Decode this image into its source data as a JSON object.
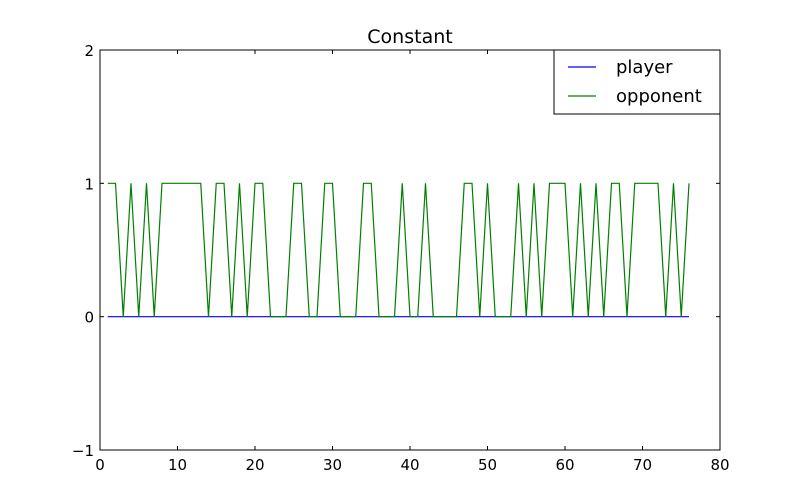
{
  "chart_data": {
    "type": "line",
    "title": "Constant",
    "xlabel": "",
    "ylabel": "",
    "xlim": [
      0,
      80
    ],
    "ylim": [
      -1,
      2
    ],
    "xticks": [
      0,
      10,
      20,
      30,
      40,
      50,
      60,
      70,
      80
    ],
    "yticks": [
      -1,
      0,
      1,
      2
    ],
    "grid": false,
    "legend_position": "top-right",
    "x": [
      1,
      2,
      3,
      4,
      5,
      6,
      7,
      8,
      9,
      10,
      11,
      12,
      13,
      14,
      15,
      16,
      17,
      18,
      19,
      20,
      21,
      22,
      23,
      24,
      25,
      26,
      27,
      28,
      29,
      30,
      31,
      32,
      33,
      34,
      35,
      36,
      37,
      38,
      39,
      40,
      41,
      42,
      43,
      44,
      45,
      46,
      47,
      48,
      49,
      50,
      51,
      52,
      53,
      54,
      55,
      56,
      57,
      58,
      59,
      60,
      61,
      62,
      63,
      64,
      65,
      66,
      67,
      68,
      69,
      70,
      71,
      72,
      73,
      74,
      75,
      76
    ],
    "series": [
      {
        "name": "player",
        "color": "#0000ff",
        "values": [
          0,
          0,
          0,
          0,
          0,
          0,
          0,
          0,
          0,
          0,
          0,
          0,
          0,
          0,
          0,
          0,
          0,
          0,
          0,
          0,
          0,
          0,
          0,
          0,
          0,
          0,
          0,
          0,
          0,
          0,
          0,
          0,
          0,
          0,
          0,
          0,
          0,
          0,
          0,
          0,
          0,
          0,
          0,
          0,
          0,
          0,
          0,
          0,
          0,
          0,
          0,
          0,
          0,
          0,
          0,
          0,
          0,
          0,
          0,
          0,
          0,
          0,
          0,
          0,
          0,
          0,
          0,
          0,
          0,
          0,
          0,
          0,
          0,
          0,
          0,
          0
        ]
      },
      {
        "name": "opponent",
        "color": "#008000",
        "values": [
          1,
          1,
          0,
          1,
          0,
          1,
          0,
          1,
          1,
          1,
          1,
          1,
          1,
          0,
          1,
          1,
          0,
          1,
          0,
          1,
          1,
          0,
          0,
          0,
          1,
          1,
          0,
          0,
          1,
          1,
          0,
          0,
          0,
          1,
          1,
          0,
          0,
          0,
          1,
          0,
          0,
          1,
          0,
          0,
          0,
          0,
          1,
          1,
          0,
          1,
          0,
          0,
          0,
          1,
          0,
          1,
          0,
          1,
          1,
          1,
          0,
          1,
          0,
          1,
          0,
          1,
          1,
          0,
          1,
          1,
          1,
          1,
          0,
          1,
          0,
          1
        ]
      }
    ]
  }
}
